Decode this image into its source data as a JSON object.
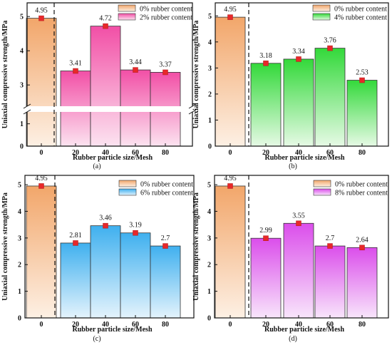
{
  "figure": {
    "panel_tags": [
      "(a)",
      "(b)",
      "(c)",
      "(d)"
    ]
  },
  "colors": {
    "baseline_top": "#F2A66A",
    "baseline_bottom": "#FDF0E4",
    "marker": "#E8282A",
    "axis": "#111111",
    "panel_a_top": "#F24FA6",
    "panel_a_bottom": "#FCE3F0",
    "panel_b_top": "#33D93A",
    "panel_b_bottom": "#E6FAE5",
    "panel_c_top": "#3FB0EF",
    "panel_c_bottom": "#E4F3FC",
    "panel_d_top": "#DB4EEB",
    "panel_d_bottom": "#F8E5FB"
  },
  "chart_data": [
    {
      "type": "bar",
      "panel": "(a)",
      "xlabel": "Rubber particle size/Mesh",
      "ylabel": "Uniaxial compressive strength/MPa",
      "categories": [
        "0",
        "20",
        "40",
        "60",
        "80"
      ],
      "values": [
        4.95,
        3.41,
        4.72,
        3.44,
        3.37
      ],
      "value_labels": [
        "4.95",
        "3.41",
        "4.72",
        "3.44",
        "3.37"
      ],
      "legend": [
        "0% rubber content",
        "2% rubber content"
      ],
      "legend_position": "top-right",
      "y_axis_break": true,
      "y_ticks_upper": [
        "3",
        "4",
        "5"
      ],
      "y_ticks_lower": [
        "0",
        "1"
      ],
      "ylim_upper": [
        2.4,
        5.4
      ],
      "ylim_lower": [
        0,
        1.5
      ],
      "grid": false
    },
    {
      "type": "bar",
      "panel": "(b)",
      "xlabel": "Rubber particle size/Mesh",
      "ylabel": "Uniaxial compressive strength/MPa",
      "categories": [
        "0",
        "20",
        "40",
        "60",
        "80"
      ],
      "values": [
        4.95,
        3.18,
        3.34,
        3.76,
        2.53
      ],
      "value_labels": [
        "4.95",
        "3.18",
        "3.34",
        "3.76",
        "2.53"
      ],
      "legend": [
        "0% rubber content",
        "4% rubber content"
      ],
      "legend_position": "top-right",
      "y_ticks": [
        "0",
        "1",
        "2",
        "3",
        "4",
        "5"
      ],
      "ylim": [
        0,
        5.5
      ],
      "grid": false
    },
    {
      "type": "bar",
      "panel": "(c)",
      "xlabel": "Rubber particle size/Mesh",
      "ylabel": "Uniaxial compressive strength/MPa",
      "categories": [
        "0",
        "20",
        "40",
        "60",
        "80"
      ],
      "values": [
        4.95,
        2.81,
        3.46,
        3.19,
        2.7
      ],
      "value_labels": [
        "4.95",
        "2.81",
        "3.46",
        "3.19",
        "2.7"
      ],
      "legend": [
        "0% rubber content",
        "6% rubber content"
      ],
      "legend_position": "top-right",
      "y_ticks": [
        "0",
        "1",
        "2",
        "3",
        "4",
        "5"
      ],
      "ylim": [
        0,
        5.35
      ],
      "grid": false
    },
    {
      "type": "bar",
      "panel": "(d)",
      "xlabel": "Rubber particle size/Mesh",
      "ylabel": "Uniaxial compressive strength/MPa",
      "categories": [
        "0",
        "20",
        "40",
        "60",
        "80"
      ],
      "values": [
        4.95,
        2.99,
        3.55,
        2.7,
        2.64
      ],
      "value_labels": [
        "4.95",
        "2.99",
        "3.55",
        "2.7",
        "2.64"
      ],
      "legend": [
        "0% rubber content",
        "8% rubber content"
      ],
      "legend_position": "top-right",
      "y_ticks": [
        "0",
        "1",
        "2",
        "3",
        "4",
        "5"
      ],
      "ylim": [
        0,
        5.35
      ],
      "grid": false
    }
  ]
}
